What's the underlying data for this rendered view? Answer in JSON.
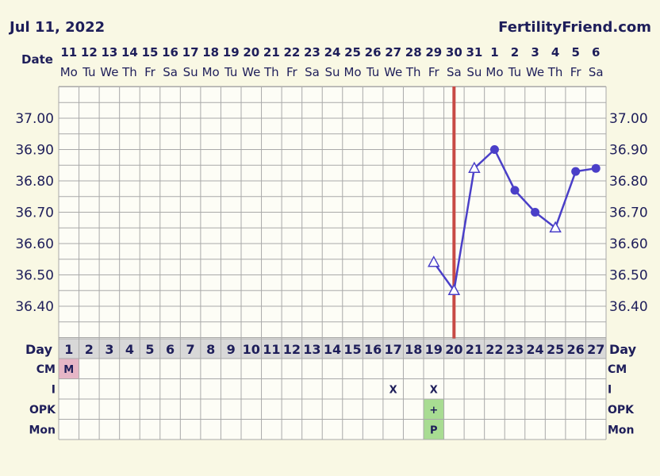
{
  "header": {
    "date": "Jul 11, 2022",
    "site": "FertilityFriend.com",
    "date_row_label": "Date",
    "day_row_label": "Day"
  },
  "colors": {
    "background": "#f9f8e4",
    "grid": "#a9a9a9",
    "line": "#4a3fc8",
    "ovulation_line": "#c84a45",
    "menstruation_cell": "#e6b6c6",
    "positive_cell": "#a8dc92",
    "day_row": "#d8d8d8"
  },
  "chart_data": {
    "type": "line",
    "title": "",
    "dates": [
      "11",
      "12",
      "13",
      "14",
      "15",
      "16",
      "17",
      "18",
      "19",
      "20",
      "21",
      "22",
      "23",
      "24",
      "25",
      "26",
      "27",
      "28",
      "29",
      "30",
      "31",
      "1",
      "2",
      "3",
      "4",
      "5",
      "6"
    ],
    "weekdays": [
      "Mo",
      "Tu",
      "We",
      "Th",
      "Fr",
      "Sa",
      "Su",
      "Mo",
      "Tu",
      "We",
      "Th",
      "Fr",
      "Sa",
      "Su",
      "Mo",
      "Tu",
      "We",
      "Th",
      "Fr",
      "Sa",
      "Su",
      "Mo",
      "Tu",
      "We",
      "Th",
      "Fr",
      "Sa"
    ],
    "cycle_days": [
      "1",
      "2",
      "3",
      "4",
      "5",
      "6",
      "7",
      "8",
      "9",
      "10",
      "11",
      "12",
      "13",
      "14",
      "15",
      "16",
      "17",
      "18",
      "19",
      "20",
      "21",
      "22",
      "23",
      "24",
      "25",
      "26",
      "27"
    ],
    "y_ticks": [
      "37.00",
      "36.90",
      "36.80",
      "36.70",
      "36.60",
      "36.50",
      "36.40"
    ],
    "ylim": [
      36.33,
      37.09
    ],
    "grid": true,
    "ovulation_day": 20,
    "series": [
      {
        "points": [
          {
            "day": 19,
            "temp": 36.54,
            "marker": "open-triangle"
          },
          {
            "day": 20,
            "temp": 36.45,
            "marker": "open-triangle"
          },
          {
            "day": 21,
            "temp": 36.84,
            "marker": "open-triangle"
          },
          {
            "day": 22,
            "temp": 36.9,
            "marker": "dot"
          },
          {
            "day": 23,
            "temp": 36.77,
            "marker": "dot"
          },
          {
            "day": 24,
            "temp": 36.7,
            "marker": "dot"
          },
          {
            "day": 25,
            "temp": 36.65,
            "marker": "open-triangle"
          },
          {
            "day": 26,
            "temp": 36.83,
            "marker": "dot"
          },
          {
            "day": 27,
            "temp": 36.84,
            "marker": "dot"
          }
        ]
      }
    ],
    "rows": [
      {
        "label": "CM",
        "cells": [
          {
            "day": 1,
            "text": "M",
            "bg": "menstruation"
          }
        ]
      },
      {
        "label": "I",
        "cells": [
          {
            "day": 17,
            "text": "X"
          },
          {
            "day": 19,
            "text": "X"
          }
        ]
      },
      {
        "label": "OPK",
        "cells": [
          {
            "day": 19,
            "text": "+",
            "bg": "positive"
          }
        ]
      },
      {
        "label": "Mon",
        "cells": [
          {
            "day": 19,
            "text": "P",
            "bg": "positive"
          }
        ]
      }
    ]
  }
}
